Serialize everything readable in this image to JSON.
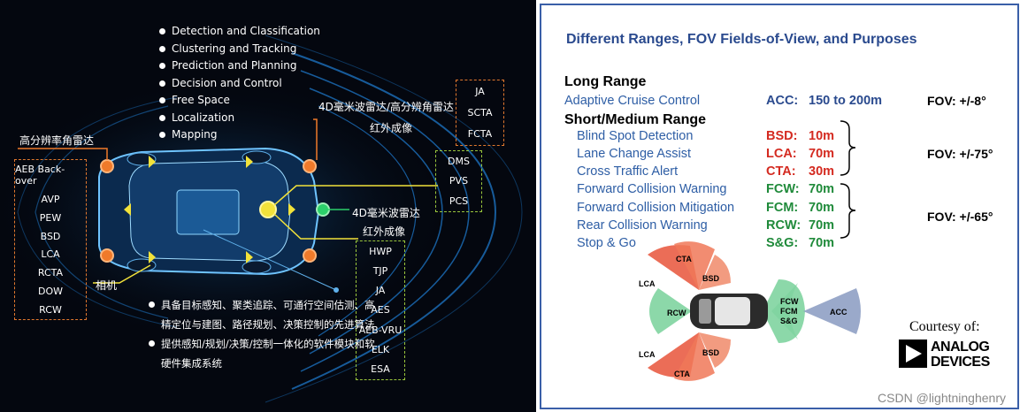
{
  "left": {
    "bullets": [
      "Detection and Classification",
      "Clustering and Tracking",
      "Prediction and Planning",
      "Decision and Control",
      "Free Space",
      "Localization",
      "Mapping"
    ],
    "labels": {
      "hr_corner_radar": "高分辨率角雷达",
      "front_4d_label": "4D毫米波雷达/高分辨角雷达",
      "front_ir": "红外成像",
      "mid_4d_label": "4D毫米波雷达",
      "mid_ir": "红外成像",
      "camera": "相机"
    },
    "box_left": [
      "AEB Back-over",
      "AVP",
      "PEW",
      "BSD",
      "LCA",
      "RCTA",
      "DOW",
      "RCW"
    ],
    "box_top_right": [
      "JA",
      "SCTA",
      "FCTA"
    ],
    "box_dms": [
      "DMS",
      "PVS",
      "PCS"
    ],
    "box_bottom": [
      "HWP",
      "TJP",
      "JA",
      "AES",
      "AEB-VRU",
      "ELK",
      "ESA"
    ],
    "cn_bullets": [
      "具备目标感知、聚类追踪、可通行空间估测、高精定位与建图、路径规划、决策控制的先进算法",
      "提供感知/规划/决策/控制一体化的软件模块和软硬件集成系统"
    ]
  },
  "right": {
    "title": "Different Ranges, FOV Fields-of-View, and Purposes",
    "long_range": "Long Range",
    "short_medium": "Short/Medium Range",
    "rows": [
      {
        "feature": "Adaptive Cruise Control",
        "abbr": "ACC:",
        "range": "150 to 200m",
        "color": "#2a4a8e"
      },
      {
        "feature": "Blind Spot Detection",
        "abbr": "BSD:",
        "range": "10m",
        "color": "#d42a20"
      },
      {
        "feature": "Lane Change Assist",
        "abbr": "LCA:",
        "range": "70m",
        "color": "#d42a20"
      },
      {
        "feature": "Cross Traffic Alert",
        "abbr": "CTA:",
        "range": "30m",
        "color": "#d42a20"
      },
      {
        "feature": "Forward Collision Warning",
        "abbr": "FCW:",
        "range": "70m",
        "color": "#1f8a3a"
      },
      {
        "feature": "Forward Collision Mitigation",
        "abbr": "FCM:",
        "range": "70m",
        "color": "#1f8a3a"
      },
      {
        "feature": "Rear Collision Warning",
        "abbr": "RCW:",
        "range": "70m",
        "color": "#1f8a3a"
      },
      {
        "feature": "Stop & Go",
        "abbr": "S&G:",
        "range": "70m",
        "color": "#1f8a3a"
      }
    ],
    "fov": [
      "FOV: +/-8°",
      "FOV: +/-75°",
      "FOV: +/-65°"
    ],
    "diagram_labels": {
      "cta": "CTA",
      "bsd": "BSD",
      "lca": "LCA",
      "rcw": "RCW",
      "fcw": "FCW",
      "fcm": "FCM",
      "sg": "S&G",
      "acc": "ACC"
    },
    "courtesy": "Courtesy of:",
    "logo_line1": "ANALOG",
    "logo_line2": "DEVICES"
  },
  "watermark": "CSDN @lightninghenry"
}
